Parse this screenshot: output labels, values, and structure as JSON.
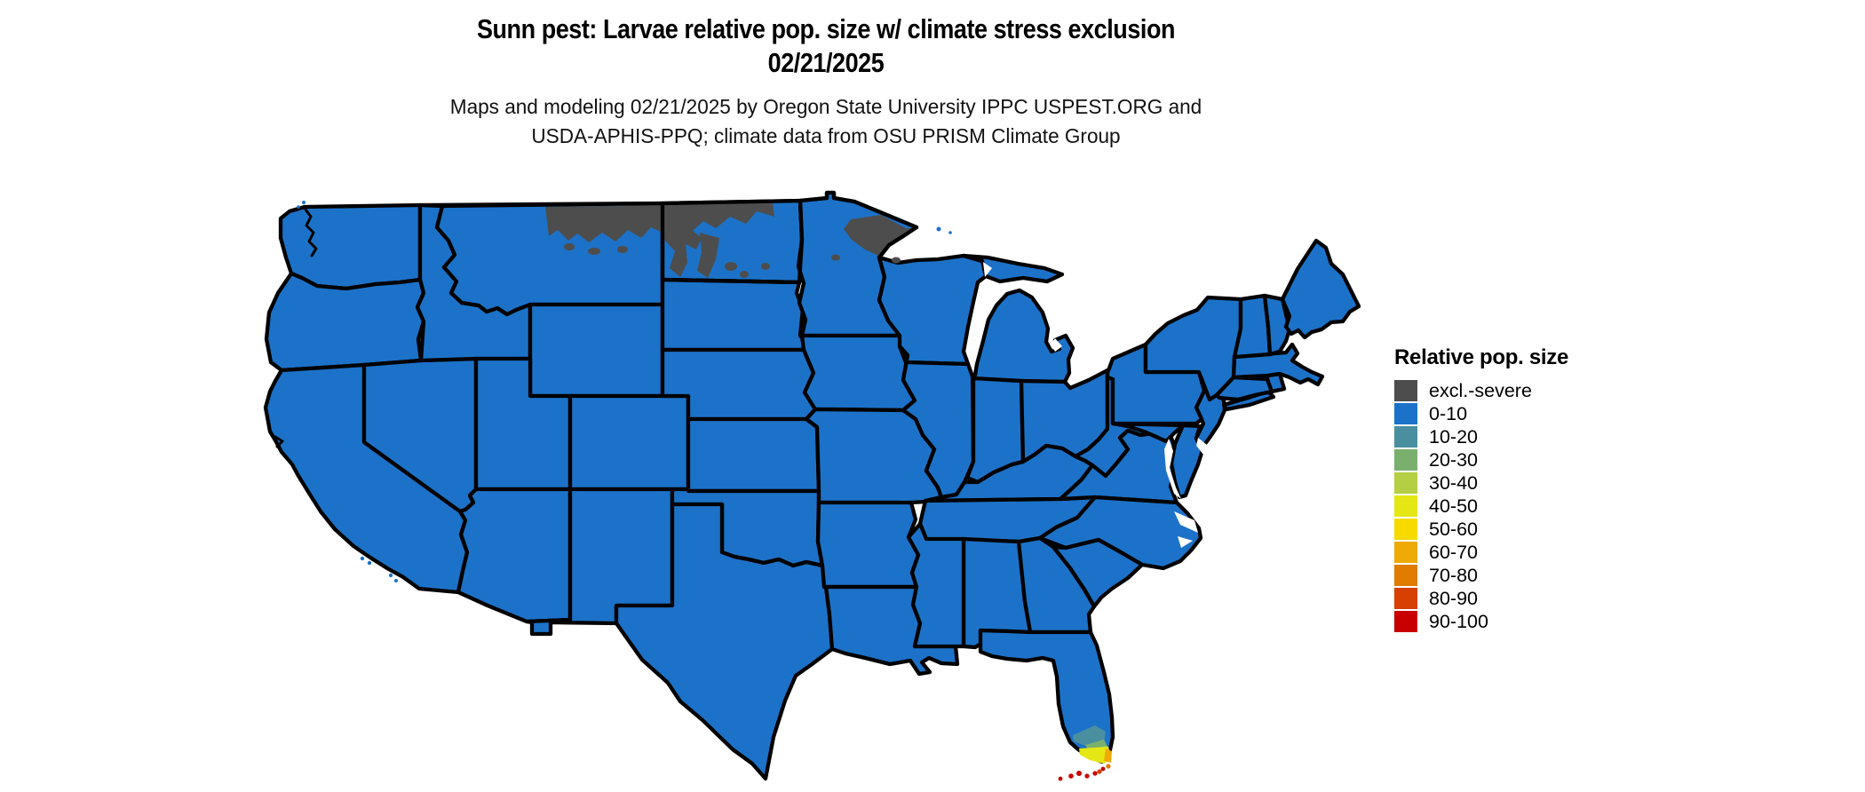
{
  "header": {
    "title_line1": "Sunn pest: Larvae relative pop. size w/ climate stress exclusion",
    "title_line2": "02/21/2025",
    "subtitle_line1": "Maps and modeling 02/21/2025 by Oregon State University IPPC USPEST.ORG and",
    "subtitle_line2": "USDA-APHIS-PPQ; climate data from OSU PRISM Climate Group"
  },
  "legend": {
    "title": "Relative pop. size",
    "items": [
      {
        "label": "excl.-severe",
        "color": "#4d4d4d"
      },
      {
        "label": "0-10",
        "color": "#1c72c8"
      },
      {
        "label": "10-20",
        "color": "#4a8f9f"
      },
      {
        "label": "20-30",
        "color": "#7ab06e"
      },
      {
        "label": "30-40",
        "color": "#b4cf43"
      },
      {
        "label": "40-50",
        "color": "#e4e714"
      },
      {
        "label": "50-60",
        "color": "#f6da00"
      },
      {
        "label": "60-70",
        "color": "#efaa06"
      },
      {
        "label": "70-80",
        "color": "#e07c00"
      },
      {
        "label": "80-90",
        "color": "#d64000"
      },
      {
        "label": "90-100",
        "color": "#c80000"
      }
    ]
  },
  "map": {
    "land_fill": "#1c72c8",
    "border_color": "#000000",
    "water_color": "#ffffff",
    "observations": [
      {
        "region": "Contiguous United States (nearly all states)",
        "class": "0-10"
      },
      {
        "region": "Northern Montana / North Dakota / northern Minnesota along Canada border",
        "class": "excl.-severe"
      },
      {
        "region": "South Florida tip (gradient toward coast)",
        "class": "10-70"
      },
      {
        "region": "Florida Keys",
        "class": "80-100"
      }
    ]
  }
}
